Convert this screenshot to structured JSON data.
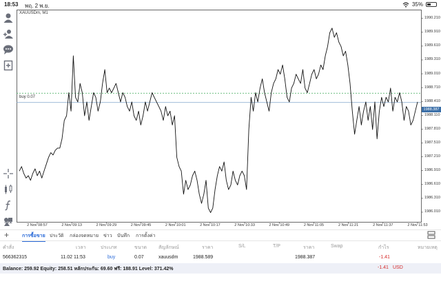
{
  "status_bar": {
    "time": "18:53",
    "date": "พฤ. 2 พ.ย.",
    "battery": "35%",
    "battery_level": 0.35
  },
  "toolbar": {
    "icons": [
      "person-icon",
      "add-person-icon",
      "chat-icon",
      "new-document-icon",
      "crosshair-icon",
      "chart-type-icon",
      "function-icon",
      "objects-icon",
      "timeframe-icon"
    ],
    "timeframe": "M1"
  },
  "chart_data": {
    "type": "line",
    "title": "XAUUSDm, M1",
    "y_ticks": [
      "1990.210",
      "1989.910",
      "1989.610",
      "1989.310",
      "1989.010",
      "1988.710",
      "1988.410",
      "1988.110",
      "1987.810",
      "1987.510",
      "1987.210",
      "1986.910",
      "1986.610",
      "1986.310",
      "1986.010"
    ],
    "ylim": [
      1985.8,
      1990.4
    ],
    "x_ticks": [
      "2 Nov 08:57",
      "2 Nov 09:13",
      "2 Nov 09:29",
      "2 Nov 09:45",
      "2 Nov 10:01",
      "2 Nov 10:17",
      "2 Nov 10:33",
      "2 Nov 10:49",
      "2 Nov 11:05",
      "2 Nov 11:21",
      "2 Nov 11:37",
      "2 Nov 11:53"
    ],
    "current_price": "1988.387",
    "buy_line": {
      "label": "buy 0.07",
      "price": 1988.589
    },
    "values": [
      1986.9,
      1987.0,
      1986.85,
      1986.75,
      1986.8,
      1986.7,
      1986.85,
      1986.95,
      1986.8,
      1986.9,
      1986.75,
      1986.9,
      1987.05,
      1987.2,
      1987.3,
      1987.25,
      1987.35,
      1987.4,
      1987.4,
      1987.6,
      1988.0,
      1988.1,
      1988.6,
      1988.2,
      1989.4,
      1988.5,
      1988.4,
      1988.8,
      1988.6,
      1988.1,
      1988.4,
      1988.0,
      1988.3,
      1988.6,
      1988.5,
      1988.2,
      1988.4,
      1988.8,
      1989.1,
      1988.6,
      1988.7,
      1988.6,
      1988.7,
      1988.8,
      1988.6,
      1988.4,
      1988.6,
      1988.5,
      1988.3,
      1988.2,
      1988.4,
      1988.1,
      1988.0,
      1988.2,
      1987.9,
      1988.1,
      1988.4,
      1988.2,
      1988.4,
      1988.6,
      1988.5,
      1988.4,
      1988.3,
      1988.2,
      1988.0,
      1988.3,
      1988.1,
      1988.2,
      1987.9,
      1988.1,
      1987.2,
      1987.0,
      1986.9,
      1986.4,
      1986.7,
      1986.5,
      1986.6,
      1986.8,
      1986.9,
      1986.7,
      1986.4,
      1986.2,
      1986.4,
      1986.7,
      1986.1,
      1986.0,
      1986.1,
      1986.5,
      1986.8,
      1987.0,
      1986.9,
      1987.1,
      1986.7,
      1986.5,
      1986.6,
      1986.9,
      1986.7,
      1986.6,
      1986.8,
      1986.9,
      1986.8,
      1986.5,
      1987.8,
      1988.5,
      1988.2,
      1988.6,
      1988.4,
      1988.7,
      1988.9,
      1988.6,
      1988.4,
      1988.2,
      1988.6,
      1988.8,
      1988.9,
      1989.1,
      1989.0,
      1989.2,
      1988.9,
      1988.5,
      1988.4,
      1988.7,
      1988.8,
      1989.0,
      1988.9,
      1988.8,
      1989.1,
      1988.7,
      1988.6,
      1988.8,
      1989.0,
      1989.1,
      1988.9,
      1989.0,
      1989.2,
      1989.1,
      1989.4,
      1989.6,
      1989.9,
      1990.0,
      1989.8,
      1989.9,
      1989.7,
      1989.6,
      1989.4,
      1989.5,
      1989.2,
      1988.8,
      1988.2,
      1987.7,
      1988.0,
      1988.3,
      1987.9,
      1988.2,
      1988.4,
      1988.0,
      1988.3,
      1987.8,
      1988.4,
      1987.6,
      1988.2,
      1988.5,
      1988.3,
      1988.5,
      1988.4,
      1988.7,
      1988.2,
      1988.5,
      1988.4,
      1988.6,
      1988.4,
      1988.0,
      1988.3,
      1988.2,
      1987.9,
      1988.0,
      1988.2,
      1988.4
    ]
  },
  "tabs": [
    {
      "label": "การซื้อขาย",
      "active": true
    },
    {
      "label": "ประวัติ",
      "active": false
    },
    {
      "label": "กล่องจดหมาย",
      "active": false
    },
    {
      "label": "ข่าว",
      "active": false
    },
    {
      "label": "บันทึก",
      "active": false
    },
    {
      "label": "การตั้งค่า",
      "active": false
    }
  ],
  "table": {
    "headers": [
      "คำสั่ง",
      "เวลา",
      "ประเภท",
      "ขนาด",
      "สัญลักษณ์",
      "ราคา",
      "S/L",
      "T/P",
      "ราคา",
      "Swap",
      "กำไร",
      "หมายเหตุ"
    ],
    "row": {
      "order": "566362315",
      "time": "11.02 11:53",
      "type": "buy",
      "size": "0.07",
      "symbol": "xauusdm",
      "price_open": "1988.589",
      "price_current": "1988.387",
      "profit": "-1.41"
    }
  },
  "balance": {
    "text": "Balance: 259.92 Equity: 258.51 หลักประกัน: 69.60 ฟรี: 188.91 Level: 371.42%",
    "profit": "-1.41",
    "currency": "USD"
  }
}
